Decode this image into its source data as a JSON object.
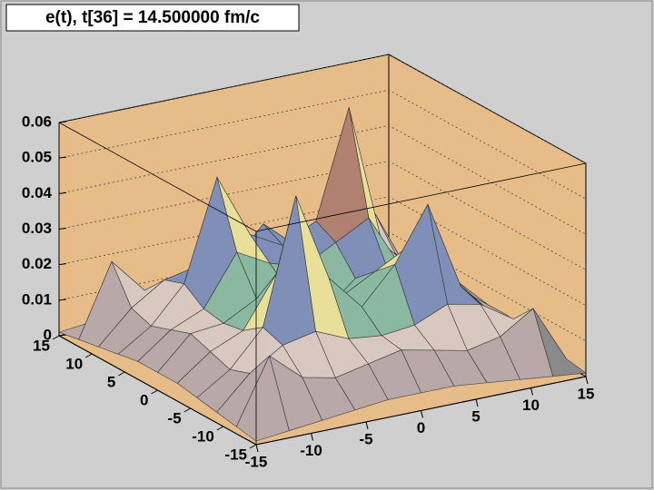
{
  "chart_data": {
    "type": "surface",
    "title": "e(t), t[36] = 14.500000 fm/c",
    "x": [
      -15,
      -12,
      -9,
      -6,
      -3,
      0,
      3,
      6,
      9,
      12,
      15
    ],
    "y": [
      -15,
      -12,
      -9,
      -6,
      -3,
      0,
      3,
      6,
      9,
      12,
      15
    ],
    "z": [
      [
        0.001,
        0.002,
        0.003,
        0.004,
        0.005,
        0.005,
        0.005,
        0.004,
        0.003,
        0.002,
        0.001
      ],
      [
        0.002,
        0.02,
        0.012,
        0.01,
        0.012,
        0.014,
        0.012,
        0.01,
        0.012,
        0.018,
        0.002
      ],
      [
        0.003,
        0.012,
        0.018,
        0.02,
        0.016,
        0.015,
        0.016,
        0.02,
        0.018,
        0.012,
        0.003
      ],
      [
        0.004,
        0.01,
        0.02,
        0.055,
        0.03,
        0.02,
        0.03,
        0.045,
        0.02,
        0.01,
        0.004
      ],
      [
        0.005,
        0.012,
        0.016,
        0.03,
        0.025,
        0.02,
        0.025,
        0.03,
        0.016,
        0.012,
        0.005
      ],
      [
        0.005,
        0.014,
        0.015,
        0.02,
        0.02,
        0.012,
        0.02,
        0.02,
        0.015,
        0.014,
        0.005
      ],
      [
        0.005,
        0.012,
        0.016,
        0.03,
        0.025,
        0.022,
        0.027,
        0.032,
        0.016,
        0.012,
        0.005
      ],
      [
        0.004,
        0.01,
        0.02,
        0.048,
        0.03,
        0.025,
        0.03,
        0.06,
        0.02,
        0.01,
        0.004
      ],
      [
        0.003,
        0.012,
        0.018,
        0.02,
        0.018,
        0.028,
        0.02,
        0.02,
        0.018,
        0.012,
        0.003
      ],
      [
        0.002,
        0.022,
        0.012,
        0.01,
        0.012,
        0.014,
        0.012,
        0.01,
        0.012,
        0.02,
        0.002
      ],
      [
        0.001,
        0.002,
        0.003,
        0.004,
        0.005,
        0.005,
        0.005,
        0.004,
        0.003,
        0.002,
        0.001
      ]
    ],
    "xlim": [
      -15,
      15
    ],
    "ylim": [
      -15,
      15
    ],
    "zlim": [
      0,
      0.06
    ],
    "xticks": [
      -15,
      -10,
      -5,
      0,
      5,
      10,
      15
    ],
    "yticks": [
      -15,
      -10,
      -5,
      0,
      5,
      10,
      15
    ],
    "zticks": [
      0,
      0.01,
      0.02,
      0.03,
      0.04,
      0.05,
      0.06
    ],
    "grid": true,
    "wall_color": "#e6bc88",
    "palette": [
      "#8a8a8a",
      "#b8a8a8",
      "#d8c8c0",
      "#8ab8a0",
      "#7f8fb8",
      "#e8e098",
      "#b08070",
      "#c8a0c0",
      "#e06080",
      "#ff2060"
    ]
  }
}
